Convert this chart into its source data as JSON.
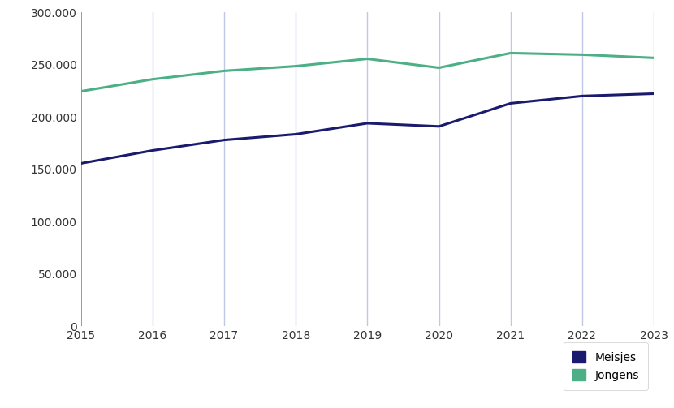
{
  "years": [
    2015,
    2016,
    2017,
    2018,
    2019,
    2020,
    2021,
    2022,
    2023
  ],
  "meisjes": [
    155640,
    168000,
    178000,
    183500,
    194000,
    191000,
    213000,
    220000,
    222230
  ],
  "jongens": [
    224460,
    236000,
    244000,
    248500,
    255500,
    247000,
    261000,
    259500,
    256430
  ],
  "meisjes_color": "#1a1a6e",
  "jongens_color": "#4caf85",
  "grid_color_2015": "#8080cc",
  "grid_color_other": "#c0c8e8",
  "background_color": "#ffffff",
  "ylim": [
    0,
    300000
  ],
  "yticks": [
    0,
    50000,
    100000,
    150000,
    200000,
    250000,
    300000
  ],
  "legend_labels": [
    "Meisjes",
    "Jongens"
  ],
  "linewidth": 2.2
}
